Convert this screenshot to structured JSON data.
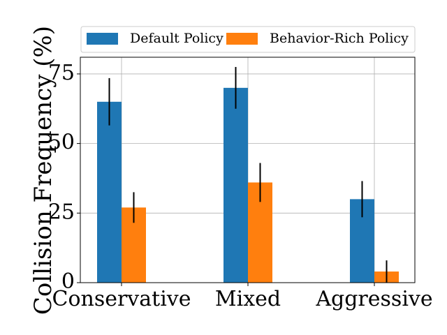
{
  "chart_data": {
    "type": "bar",
    "title": "",
    "xlabel": "",
    "ylabel": "Collision Frequency (%)",
    "ylim": [
      0,
      81
    ],
    "yticks": [
      0,
      25,
      50,
      75
    ],
    "grid": true,
    "legend_position": "top",
    "categories": [
      "Conservative",
      "Mixed",
      "Aggressive"
    ],
    "series": [
      {
        "name": "Default Policy",
        "color": "#1f77b4",
        "values": [
          65,
          70,
          30
        ],
        "errors": [
          8.5,
          7.5,
          6.5
        ]
      },
      {
        "name": "Behavior-Rich Policy",
        "color": "#ff7f0e",
        "values": [
          27,
          36,
          4
        ],
        "errors": [
          5.5,
          7,
          4
        ]
      }
    ]
  }
}
